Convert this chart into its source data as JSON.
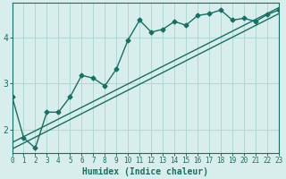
{
  "xlabel": "Humidex (Indice chaleur)",
  "background_color": "#d8eeec",
  "line_color": "#1a6e64",
  "grid_color": "#b0d8d4",
  "xlim": [
    0,
    23
  ],
  "ylim": [
    1.5,
    4.75
  ],
  "xticks": [
    0,
    1,
    2,
    3,
    4,
    5,
    6,
    7,
    8,
    9,
    10,
    11,
    12,
    13,
    14,
    15,
    16,
    17,
    18,
    19,
    20,
    21,
    22,
    23
  ],
  "yticks": [
    2,
    3,
    4
  ],
  "series": {
    "line_marked": {
      "x": [
        0,
        1,
        2,
        3,
        4,
        5,
        6,
        7,
        8,
        9,
        10,
        11,
        12,
        13,
        14,
        15,
        16,
        17,
        18,
        19,
        20,
        21,
        22,
        23
      ],
      "y": [
        2.72,
        1.82,
        1.6,
        2.38,
        2.38,
        2.71,
        3.18,
        3.12,
        2.95,
        3.32,
        3.95,
        4.38,
        4.12,
        4.18,
        4.35,
        4.27,
        4.48,
        4.52,
        4.6,
        4.38,
        4.42,
        4.35,
        4.5,
        4.6
      ],
      "marker": "D",
      "markersize": 2.5,
      "linewidth": 1.0
    },
    "line_upper": {
      "x": [
        0,
        23
      ],
      "y": [
        1.72,
        4.65
      ],
      "linewidth": 1.0
    },
    "line_lower": {
      "x": [
        0,
        23
      ],
      "y": [
        1.58,
        4.52
      ],
      "linewidth": 1.0
    }
  },
  "tick_fontsize": 5.5,
  "xlabel_fontsize": 7.0
}
